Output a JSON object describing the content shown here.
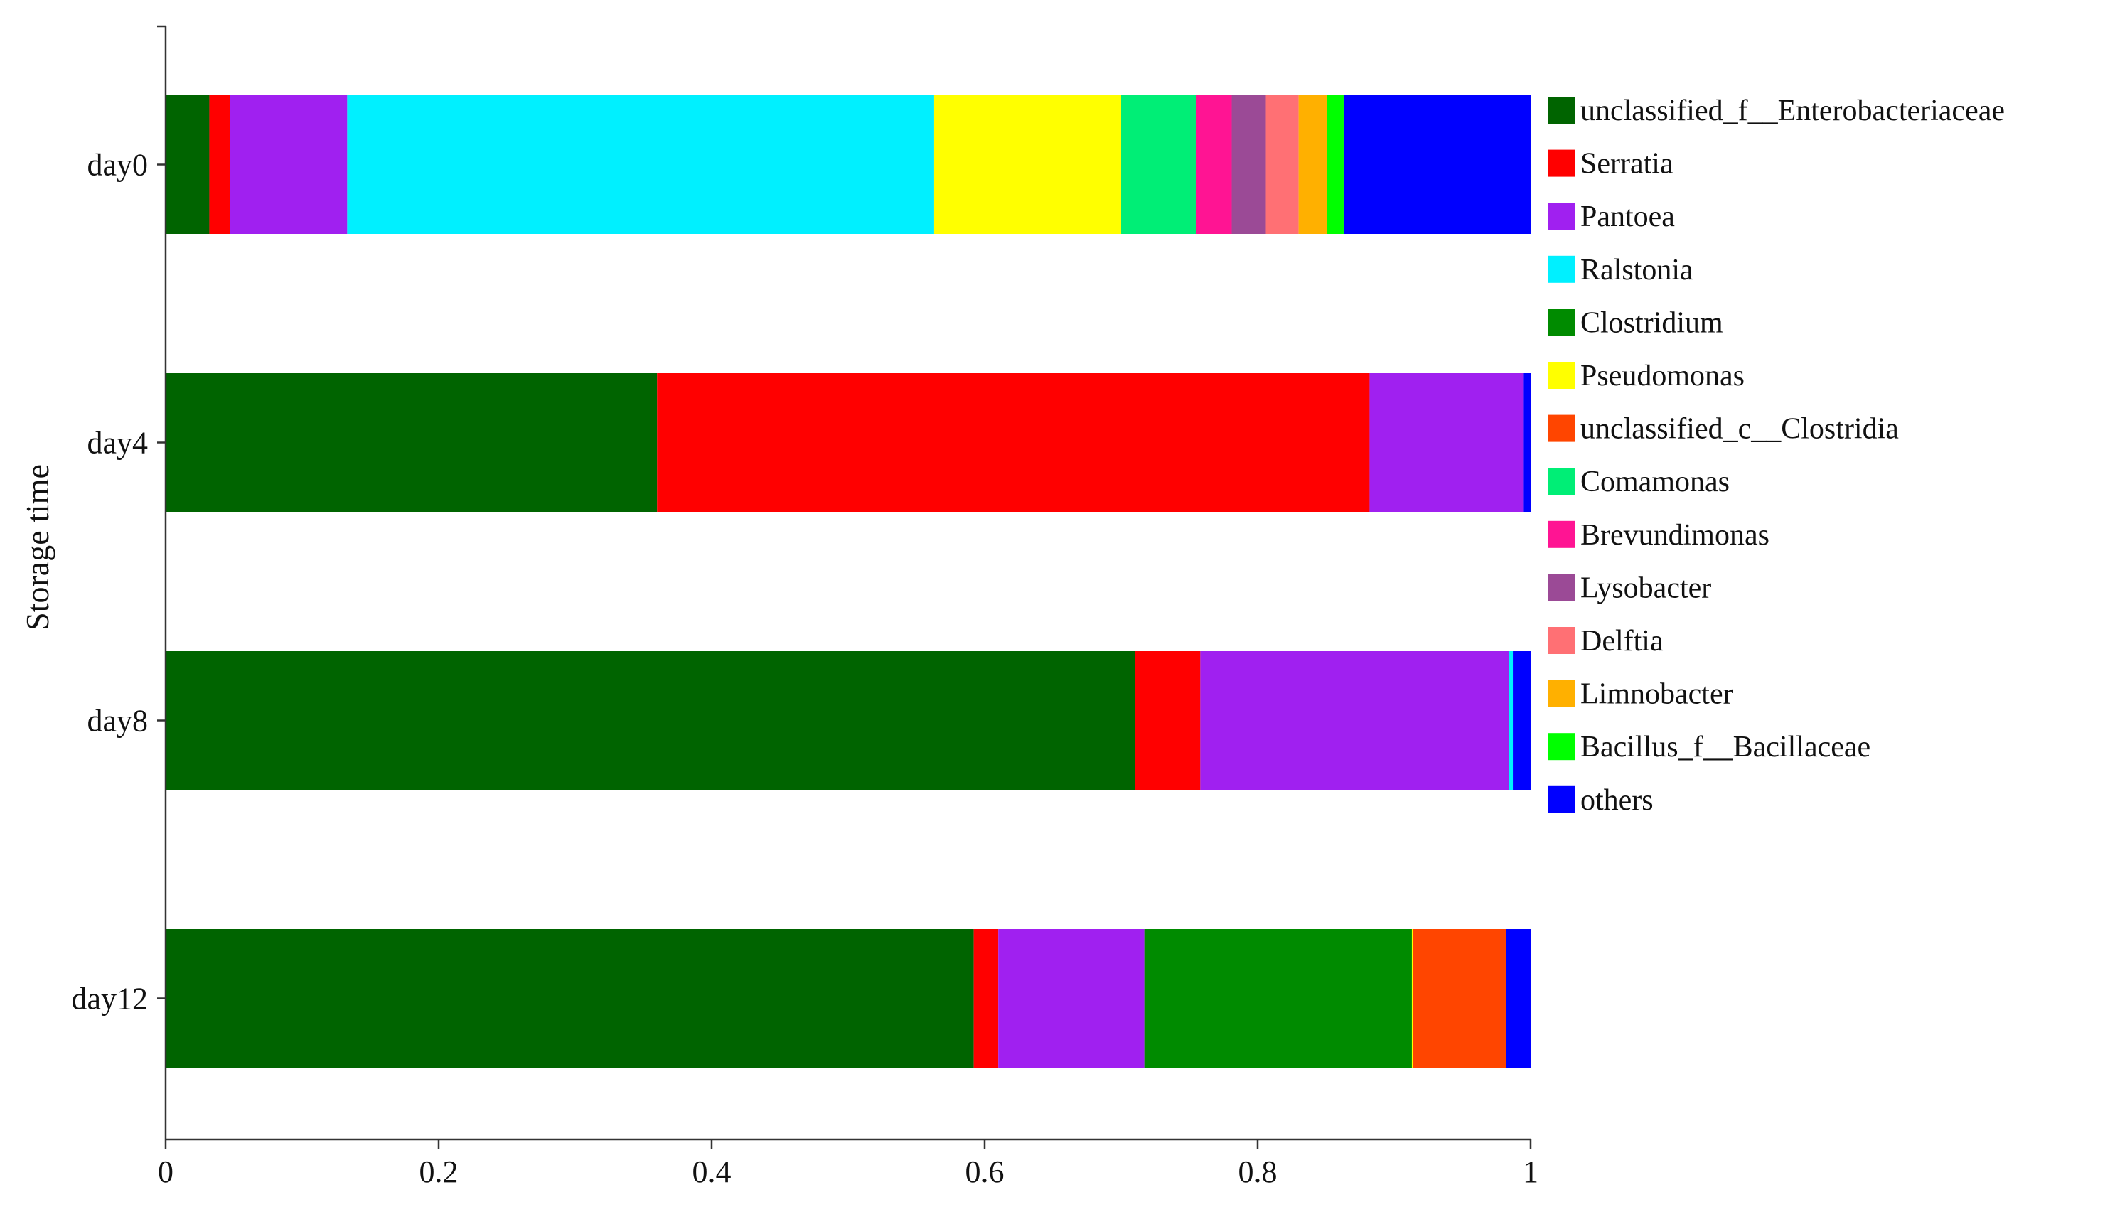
{
  "chart_data": {
    "type": "bar",
    "orientation": "horizontal",
    "stacked": true,
    "title": "",
    "xlabel": "",
    "ylabel": "Storage time",
    "xlim": [
      0,
      1
    ],
    "x_ticks": [
      "0",
      "0.2",
      "0.4",
      "0.6",
      "0.8",
      "1"
    ],
    "grid": false,
    "legend_position": "right",
    "categories": [
      "day0",
      "day4",
      "day8",
      "day12"
    ],
    "series": [
      {
        "name": "unclassified_f__Enterobacteriaceae",
        "color": "#006400",
        "values": [
          0.032,
          0.36,
          0.71,
          0.592
        ]
      },
      {
        "name": "Serratia",
        "color": "#ff0000",
        "values": [
          0.015,
          0.522,
          0.048,
          0.018
        ]
      },
      {
        "name": "Pantoea",
        "color": "#a020f0",
        "values": [
          0.086,
          0.113,
          0.226,
          0.107
        ]
      },
      {
        "name": "Ralstonia",
        "color": "#00f0ff",
        "values": [
          0.43,
          0.0,
          0.003,
          0.0
        ]
      },
      {
        "name": "Clostridium",
        "color": "#008b00",
        "values": [
          0.0,
          0.0,
          0.0,
          0.196
        ]
      },
      {
        "name": "Pseudomonas",
        "color": "#ffff00",
        "values": [
          0.137,
          0.0,
          0.0,
          0.001
        ]
      },
      {
        "name": "unclassified_c__Clostridia",
        "color": "#ff4500",
        "values": [
          0.0,
          0.0,
          0.0,
          0.068
        ]
      },
      {
        "name": "Comamonas",
        "color": "#00ee76",
        "values": [
          0.055,
          0.0,
          0.0,
          0.0
        ]
      },
      {
        "name": "Brevundimonas",
        "color": "#ff1493",
        "values": [
          0.026,
          0.0,
          0.0,
          0.0
        ]
      },
      {
        "name": "Lysobacter",
        "color": "#9b4a96",
        "values": [
          0.025,
          0.0,
          0.0,
          0.0
        ]
      },
      {
        "name": "Delftia",
        "color": "#ff7074",
        "values": [
          0.024,
          0.0,
          0.0,
          0.0
        ]
      },
      {
        "name": "Limnobacter",
        "color": "#ffb000",
        "values": [
          0.021,
          0.0,
          0.0,
          0.0
        ]
      },
      {
        "name": "Bacillus_f__Bacillaceae",
        "color": "#00ff00",
        "values": [
          0.012,
          0.0,
          0.0,
          0.0
        ]
      },
      {
        "name": "others",
        "color": "#0000ff",
        "values": [
          0.137,
          0.005,
          0.013,
          0.018
        ]
      }
    ]
  }
}
